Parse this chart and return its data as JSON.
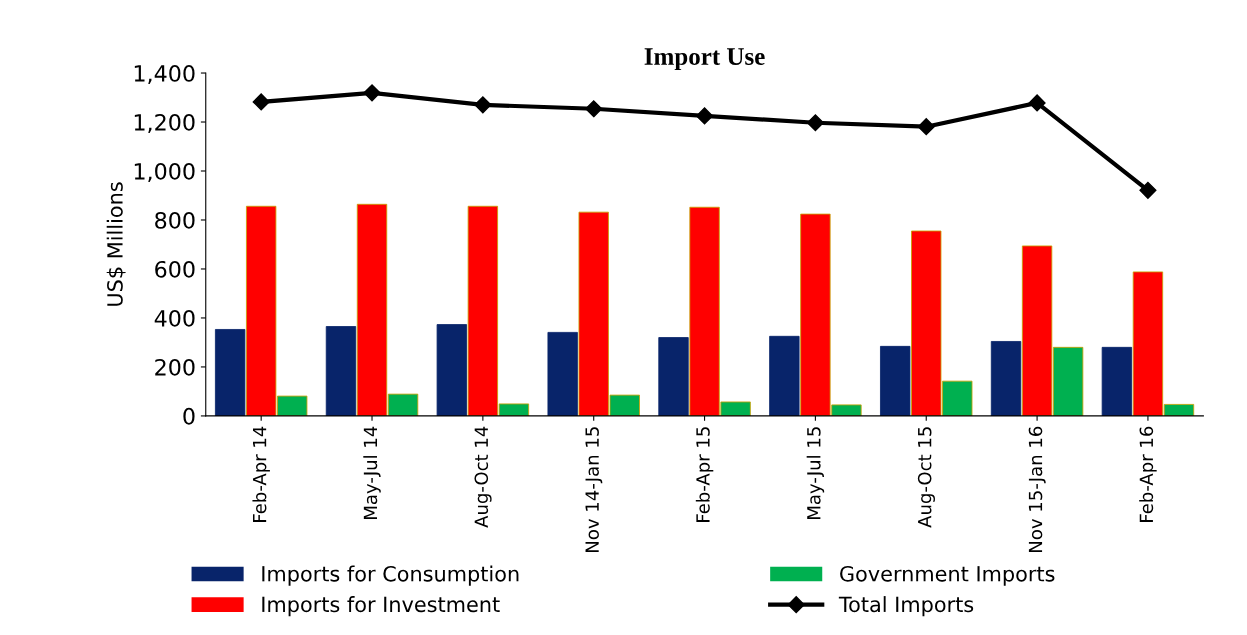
{
  "chart_data": {
    "type": "bar",
    "title": "Import Use",
    "ylabel": "US$ Millions",
    "categories": [
      "Feb-Apr 14",
      "May-Jul 14",
      "Aug-Oct 14",
      "Nov 14-Jan 15",
      "Feb-Apr 15",
      "May-Jul 15",
      "Aug-Oct 15",
      "Nov 15-Jan 16",
      "Feb-Apr 16"
    ],
    "series": [
      {
        "name": "Imports for Consumption",
        "color": "#08246a",
        "values": [
          353,
          365,
          373,
          341,
          320,
          325,
          284,
          304,
          280
        ]
      },
      {
        "name": "Imports for Investment",
        "color": "#ff0000",
        "values": [
          856,
          864,
          856,
          832,
          852,
          824,
          755,
          694,
          588
        ]
      },
      {
        "name": "Government Imports",
        "color": "#00b050",
        "values": [
          81,
          89,
          49,
          85,
          57,
          45,
          142,
          280,
          47
        ]
      },
      {
        "name": "Total Imports",
        "color": "#000000",
        "type": "line",
        "marker": "diamond",
        "values": [
          1282,
          1319,
          1270,
          1254,
          1225,
          1197,
          1181,
          1278,
          921
        ]
      }
    ],
    "ylim": [
      0,
      1400
    ],
    "yticks": [
      0,
      200,
      400,
      600,
      800,
      {
        "value": 1000,
        "label": "1,000"
      },
      {
        "value": 1200,
        "label": "1,200"
      },
      {
        "value": 1400,
        "label": "1,400"
      }
    ],
    "grid": false,
    "legend": "bottom"
  }
}
